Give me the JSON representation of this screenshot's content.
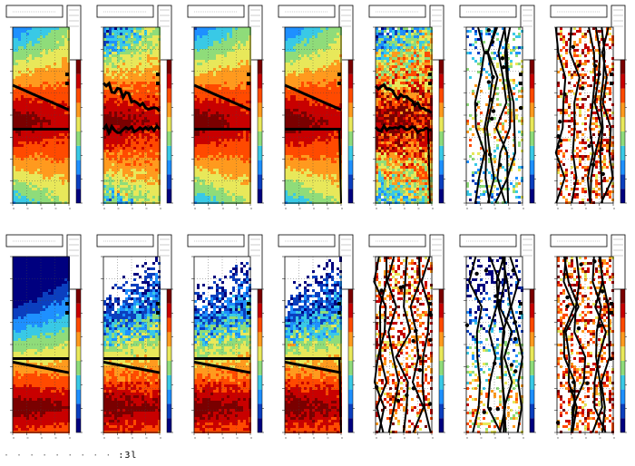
{
  "figure": {
    "rows": 2,
    "cols": 7,
    "colorbar": [
      "#00007f",
      "#0b3fbf",
      "#1e90ff",
      "#39c9e6",
      "#8fdc7a",
      "#e8e85a",
      "#ff9a1e",
      "#ff4a00",
      "#c80000",
      "#7a0000"
    ],
    "marker_color": "#000000"
  },
  "chart_data": [
    {
      "type": "heatmap",
      "row": 0,
      "col": 0,
      "map": "smooth",
      "ridge": [
        0.66,
        0.53,
        0.62,
        0.7
      ],
      "overlay": "clean"
    },
    {
      "type": "heatmap",
      "row": 0,
      "col": 1,
      "map": "noisy",
      "ridge": [
        0.66,
        0.53,
        0.62,
        0.7
      ],
      "overlay": "noisy"
    },
    {
      "type": "heatmap",
      "row": 0,
      "col": 2,
      "map": "smooth",
      "ridge": [
        0.66,
        0.53,
        0.62,
        0.7
      ],
      "overlay": "clean"
    },
    {
      "type": "heatmap",
      "row": 0,
      "col": 3,
      "map": "smooth",
      "ridge": [
        0.66,
        0.53,
        0.62,
        0.7
      ],
      "overlay": "clean-drop"
    },
    {
      "type": "heatmap",
      "row": 0,
      "col": 4,
      "map": "grainy",
      "ridge": [
        0.66,
        0.53,
        0.62,
        0.7
      ],
      "overlay": "noisy-drop"
    },
    {
      "type": "heatmap",
      "row": 0,
      "col": 5,
      "map": "sparse",
      "ridge": [
        0.66,
        0.53,
        0.62,
        0.7
      ],
      "overlay": "scatter"
    },
    {
      "type": "heatmap",
      "row": 0,
      "col": 6,
      "map": "speckle",
      "ridge": [
        0.66,
        0.53,
        0.62,
        0.7
      ],
      "overlay": "scatter"
    },
    {
      "type": "heatmap",
      "row": 1,
      "col": 0,
      "map": "smooth",
      "ridge": [
        0.4,
        0.35,
        0.4,
        0.85
      ],
      "overlay": "clean"
    },
    {
      "type": "heatmap",
      "row": 1,
      "col": 1,
      "map": "noisy",
      "ridge": [
        0.4,
        0.35,
        0.4,
        0.85
      ],
      "overlay": "clean"
    },
    {
      "type": "heatmap",
      "row": 1,
      "col": 2,
      "map": "noisy",
      "ridge": [
        0.4,
        0.35,
        0.4,
        0.85
      ],
      "overlay": "clean"
    },
    {
      "type": "heatmap",
      "row": 1,
      "col": 3,
      "map": "noisy",
      "ridge": [
        0.4,
        0.35,
        0.4,
        0.85
      ],
      "overlay": "clean-drop"
    },
    {
      "type": "heatmap",
      "row": 1,
      "col": 4,
      "map": "speckle",
      "ridge": [
        0.4,
        0.35,
        0.4,
        0.85
      ],
      "overlay": "scatter"
    },
    {
      "type": "heatmap",
      "row": 1,
      "col": 5,
      "map": "sparse",
      "ridge": [
        0.4,
        0.35,
        0.4,
        0.85
      ],
      "overlay": "scatter"
    },
    {
      "type": "heatmap",
      "row": 1,
      "col": 6,
      "map": "speckle",
      "ridge": [
        0.4,
        0.35,
        0.4,
        0.85
      ],
      "overlay": "scatter"
    }
  ],
  "footer": {
    "text": ":3l"
  }
}
